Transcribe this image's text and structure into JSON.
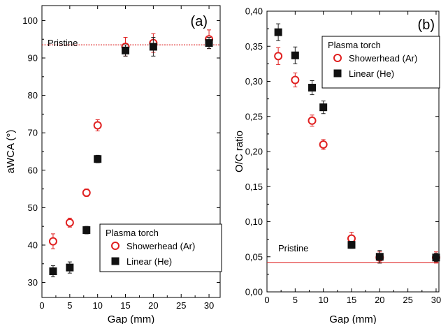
{
  "figure": {
    "title": ""
  },
  "chart_data": [
    {
      "type": "scatter",
      "panel_label": "(a)",
      "xlabel": "Gap (mm)",
      "ylabel": "aWCA (°)",
      "xlim": [
        0,
        32
      ],
      "ylim": [
        26,
        104
      ],
      "xticks": [
        0,
        5,
        10,
        15,
        20,
        25,
        30
      ],
      "xtick_labels": [
        "0",
        "5",
        "10",
        "15",
        "20",
        "25",
        "30"
      ],
      "yticks": [
        30,
        40,
        50,
        60,
        70,
        80,
        90,
        100
      ],
      "ytick_labels": [
        "30",
        "40",
        "50",
        "60",
        "70",
        "80",
        "90",
        "100"
      ],
      "grid": false,
      "reference_line": {
        "label": "Pristine",
        "value": 93.5,
        "color": "#e03030"
      },
      "legend": {
        "title": "Plasma torch",
        "placement": "bottom-right"
      },
      "series": [
        {
          "name": "Showerhead (Ar)",
          "marker": "open-circle",
          "color": "#e02020",
          "x": [
            2,
            5,
            8,
            10,
            15,
            20,
            30
          ],
          "y": [
            41,
            46,
            54,
            72,
            93,
            94,
            95
          ],
          "err": [
            2,
            1.2,
            1,
            1.5,
            2.5,
            2.5,
            2.5
          ]
        },
        {
          "name": "Linear (He)",
          "marker": "filled-square",
          "color": "#111111",
          "x": [
            2,
            5,
            8,
            10,
            15,
            20,
            30
          ],
          "y": [
            33,
            34,
            44,
            63,
            92,
            93,
            94
          ],
          "err": [
            1.5,
            1.5,
            1,
            1,
            1.5,
            2.5,
            1.5
          ]
        }
      ]
    },
    {
      "type": "scatter",
      "panel_label": "(b)",
      "xlabel": "Gap (mm)",
      "ylabel": "O/C ratio",
      "xlim": [
        0,
        30.5
      ],
      "ylim": [
        0,
        0.4
      ],
      "xticks": [
        0,
        5,
        10,
        15,
        20,
        25,
        30
      ],
      "xtick_labels": [
        "0",
        "5",
        "10",
        "15",
        "20",
        "25",
        "30"
      ],
      "yticks": [
        0,
        0.05,
        0.1,
        0.15,
        0.2,
        0.25,
        0.3,
        0.35,
        0.4
      ],
      "ytick_labels": [
        "0,00",
        "0,05",
        "0,10",
        "0,15",
        "0,20",
        "0,25",
        "0,30",
        "0,35",
        "0,40"
      ],
      "grid": false,
      "reference_line": {
        "label": "Pristine",
        "value": 0.042,
        "color": "#e03030"
      },
      "legend": {
        "title": "Plasma torch",
        "placement": "top-right"
      },
      "series": [
        {
          "name": "Showerhead (Ar)",
          "marker": "open-circle",
          "color": "#e02020",
          "x": [
            2,
            5,
            8,
            10,
            15,
            20,
            30
          ],
          "y": [
            0.336,
            0.302,
            0.244,
            0.21,
            0.076,
            0.049,
            0.049
          ],
          "err": [
            0.012,
            0.01,
            0.008,
            0.007,
            0.009,
            0.008,
            0.008
          ]
        },
        {
          "name": "Linear (He)",
          "marker": "filled-square",
          "color": "#111111",
          "x": [
            2,
            5,
            8,
            10,
            15,
            20,
            30
          ],
          "y": [
            0.37,
            0.337,
            0.291,
            0.263,
            0.067,
            0.05,
            0.049
          ],
          "err": [
            0.012,
            0.012,
            0.01,
            0.009,
            0.005,
            0.009,
            0.006
          ]
        }
      ]
    }
  ]
}
